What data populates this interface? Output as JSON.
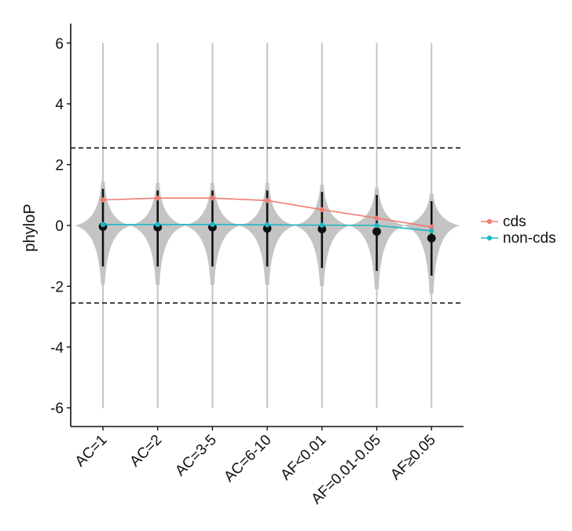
{
  "chart_data": {
    "type": "violin",
    "title": "",
    "xlabel": "",
    "ylabel": "phyloP",
    "ylim": [
      -6.8,
      6.6
    ],
    "yticks": [
      6,
      4,
      2,
      0,
      -2,
      -4,
      -6
    ],
    "ytick_labels": [
      "6",
      "4",
      "2",
      "0",
      "-2",
      "-4",
      "-6"
    ],
    "categories": [
      "AC=1",
      "AC=2",
      "AC=3-5",
      "AC=6-10",
      "AF<0.01",
      "AF=0.01-0.05",
      "AF≥0.05"
    ],
    "reference_lines": [
      2.55,
      -2.55
    ],
    "series": [
      {
        "name": "cds",
        "color": "#f07b72",
        "values": [
          0.84,
          0.9,
          0.9,
          0.82,
          0.52,
          0.24,
          -0.05
        ]
      },
      {
        "name": "non-cds",
        "color": "#1fb7c4",
        "values": [
          0.03,
          0.03,
          0.03,
          0.02,
          0.01,
          0.0,
          -0.18
        ]
      }
    ],
    "violin_summary": {
      "medians": [
        -0.04,
        -0.06,
        -0.06,
        -0.1,
        -0.12,
        -0.2,
        -0.42
      ],
      "upper_whisker": [
        1.2,
        1.15,
        1.15,
        1.15,
        1.1,
        1.0,
        0.8
      ],
      "lower_whisker": [
        -1.35,
        -1.35,
        -1.35,
        -1.35,
        -1.4,
        -1.5,
        -1.65
      ],
      "tail_max": [
        6.0,
        6.0,
        6.0,
        6.0,
        6.0,
        6.0,
        6.0
      ],
      "tail_min": [
        -6.0,
        -6.0,
        -6.0,
        -6.0,
        -6.0,
        -6.0,
        -6.0
      ]
    },
    "legend": {
      "position": "right",
      "entries": [
        "cds",
        "non-cds"
      ]
    }
  }
}
